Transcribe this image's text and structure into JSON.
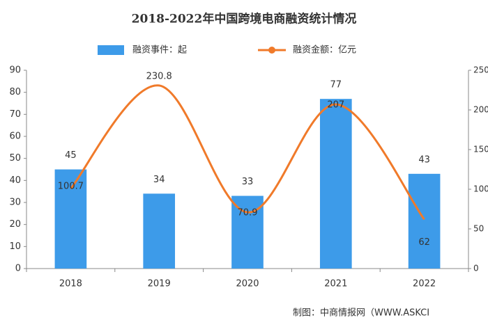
{
  "chart_data": {
    "type": "bar-line",
    "title": "2018-2022年中国跨境电商融资统计情况",
    "categories": [
      "2018",
      "2019",
      "2020",
      "2021",
      "2022"
    ],
    "series": [
      {
        "name": "融资事件：起",
        "color": "#3d9be9",
        "type": "bar",
        "values": [
          45,
          34,
          33,
          77,
          43
        ]
      },
      {
        "name": "融资金额：亿元",
        "color": "#f07a2a",
        "type": "line",
        "axis": "y2",
        "values": [
          100.7,
          230.8,
          70.9,
          207,
          62
        ]
      }
    ],
    "ylim": [
      0,
      90
    ],
    "yticks": [
      0,
      10,
      20,
      30,
      40,
      50,
      60,
      70,
      80,
      90
    ],
    "y2lim": [
      0,
      250
    ],
    "y2ticks": [
      0,
      50,
      100,
      150,
      200,
      250
    ],
    "source": "制图：中商情报网（WWW.ASKCI"
  }
}
